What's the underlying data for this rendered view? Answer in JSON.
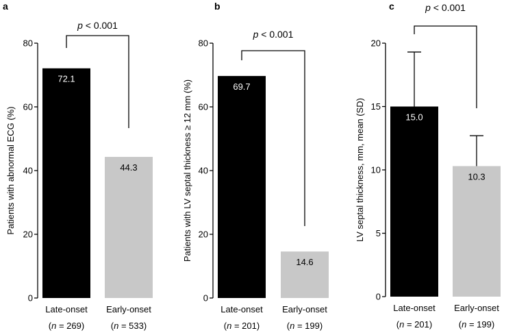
{
  "chart_data": [
    {
      "type": "bar",
      "panel": "a",
      "title": "",
      "ylabel": "Patients with abnormal ECG (%)",
      "xlabel": "",
      "ylim": [
        0,
        80
      ],
      "yticks": [
        "0",
        "20",
        "40",
        "60",
        "80"
      ],
      "categories": [
        "Late-onset",
        "Early-onset"
      ],
      "n": [
        "269",
        "533"
      ],
      "values": [
        72.1,
        44.3
      ],
      "value_labels": [
        "72.1",
        "44.3"
      ],
      "colors": [
        "#000000",
        "#c8c8c8"
      ],
      "significance": "p < 0.001"
    },
    {
      "type": "bar",
      "panel": "b",
      "title": "",
      "ylabel": "Patients with LV septal thickness ≥ 12 mm (%)",
      "xlabel": "",
      "ylim": [
        0,
        80
      ],
      "yticks": [
        "0",
        "20",
        "40",
        "60",
        "80"
      ],
      "categories": [
        "Late-onset",
        "Early-onset"
      ],
      "n": [
        "201",
        "199"
      ],
      "values": [
        69.7,
        14.6
      ],
      "value_labels": [
        "69.7",
        "14.6"
      ],
      "colors": [
        "#000000",
        "#c8c8c8"
      ],
      "significance": "p < 0.001"
    },
    {
      "type": "bar",
      "panel": "c",
      "title": "",
      "ylabel": "LV septal thickness, mm, mean (SD)",
      "xlabel": "",
      "ylim": [
        0,
        20
      ],
      "yticks": [
        "0",
        "5",
        "10",
        "15",
        "20"
      ],
      "categories": [
        "Late-onset",
        "Early-onset"
      ],
      "n": [
        "201",
        "199"
      ],
      "values": [
        15.0,
        10.3
      ],
      "sd": [
        4.3,
        2.4
      ],
      "value_labels": [
        "15.0",
        "10.3"
      ],
      "colors": [
        "#000000",
        "#c8c8c8"
      ],
      "significance": "p < 0.001"
    }
  ]
}
